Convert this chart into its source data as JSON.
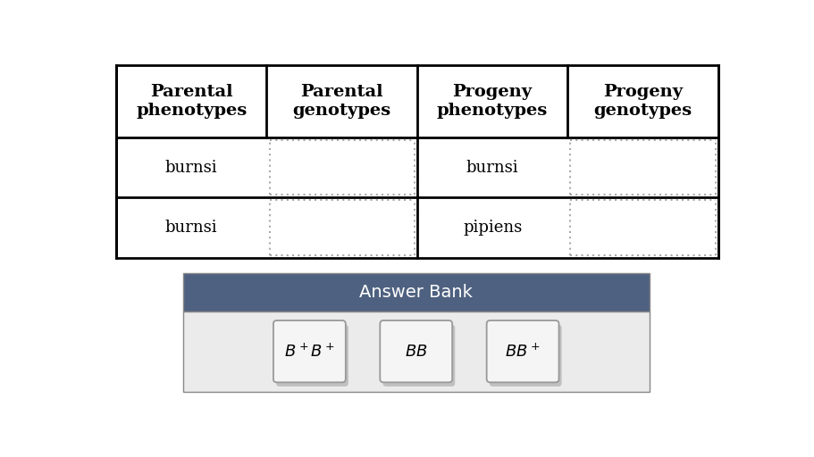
{
  "table": {
    "headers": [
      "Parental\nphenotypes",
      "Parental\ngenotypes",
      "Progeny\nphenotypes",
      "Progeny\ngenotypes"
    ],
    "row1": [
      "burnsi",
      "",
      "burnsi",
      ""
    ],
    "row2": [
      "burnsi",
      "",
      "pipiens",
      ""
    ],
    "border_color": "#000000",
    "dashed_color": "#aaaaaa"
  },
  "answer_bank": {
    "title": "Answer Bank",
    "title_bg": "#4e6180",
    "title_color": "#ffffff",
    "body_bg": "#ebebeb",
    "items": [
      "$B^+B^+$",
      "$BB$",
      "$BB^+$"
    ],
    "button_bg": "#f5f5f5",
    "button_border": "#999999",
    "shadow_color": "#c0c0c0"
  },
  "background": "#ffffff",
  "figsize": [
    9.11,
    5.12
  ],
  "dpi": 100
}
